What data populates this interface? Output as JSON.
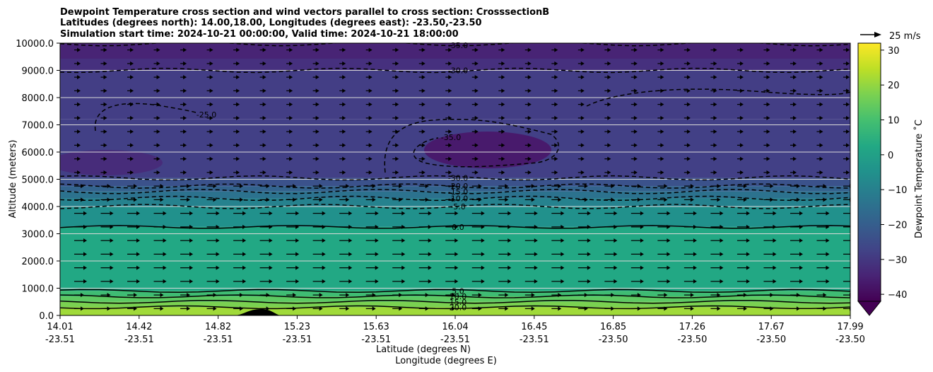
{
  "chart_data": {
    "type": "contourf",
    "title": [
      "Dewpoint Temperature cross section and wind vectors parallel to cross section: CrosssectionB",
      "Latitudes (degrees north): 14.00,18.00, Longitudes (degrees east): -23.50,-23.50",
      "Simulation start time: 2024-10-21 00:00:00, Valid time: 2024-10-21 18:00:00"
    ],
    "xlabel_lat": "Latitude (degrees N)",
    "xlabel_lon": "Longitude (degrees E)",
    "ylabel": "Altitude (meters)",
    "ylim": [
      0,
      10000
    ],
    "y_ticks": [
      "0.0",
      "1000.0",
      "2000.0",
      "3000.0",
      "4000.0",
      "5000.0",
      "6000.0",
      "7000.0",
      "8000.0",
      "9000.0",
      "10000.0"
    ],
    "y_tick_values": [
      0,
      1000,
      2000,
      3000,
      4000,
      5000,
      6000,
      7000,
      8000,
      9000,
      10000
    ],
    "x_ticks_lat": [
      "14.01",
      "14.42",
      "14.82",
      "15.23",
      "15.63",
      "16.04",
      "16.45",
      "16.85",
      "17.26",
      "17.67",
      "17.99"
    ],
    "x_ticks_lon": [
      "-23.51",
      "-23.51",
      "-23.51",
      "-23.51",
      "-23.51",
      "-23.51",
      "-23.51",
      "-23.50",
      "-23.50",
      "-23.50",
      "-23.50"
    ],
    "colorbar": {
      "label": "Dewpoint Temperature ˚C",
      "ticks": [
        "30",
        "20",
        "10",
        "0",
        "−10",
        "−20",
        "−30",
        "−40"
      ],
      "tick_values": [
        30,
        20,
        10,
        0,
        -10,
        -20,
        -30,
        -40
      ],
      "range": [
        -42,
        32
      ],
      "colormap": "viridis",
      "extend": "min"
    },
    "quiver_key": {
      "label": "25 m/s"
    },
    "grid": "horizontal",
    "contours": [
      {
        "level": -35,
        "label": "-35.0",
        "style": "dashed",
        "approx_altitude": 9980
      },
      {
        "level": -30,
        "label": "-30.0",
        "style": "dashed",
        "approx_altitude": 9000
      },
      {
        "level": -25,
        "label": "-25.0",
        "style": "dashed",
        "approx_altitude": 7200
      },
      {
        "level": -35,
        "label": "-35.0",
        "style": "dashed",
        "approx_altitude": 6100
      },
      {
        "level": -30,
        "label": "-30.0",
        "style": "dashed",
        "approx_altitude": 5050
      },
      {
        "level": -20,
        "label": "-20.0",
        "style": "dashed",
        "approx_altitude": 4750
      },
      {
        "level": -15,
        "label": "-15.0",
        "style": "dashed",
        "approx_altitude": 4550
      },
      {
        "level": -10,
        "label": "-10.0",
        "style": "dashed",
        "approx_altitude": 4300
      },
      {
        "level": -5,
        "label": "-5.0",
        "style": "dashed",
        "approx_altitude": 4000
      },
      {
        "level": 0,
        "label": "0.0",
        "style": "solid",
        "approx_altitude": 3250
      },
      {
        "level": 5,
        "label": "5.0",
        "style": "solid",
        "approx_altitude": 900
      },
      {
        "level": 10,
        "label": "10.0",
        "style": "solid",
        "approx_altitude": 700
      },
      {
        "level": 15,
        "label": "15.0",
        "style": "solid",
        "approx_altitude": 500
      },
      {
        "level": 20,
        "label": "20.0",
        "style": "solid",
        "approx_altitude": 300
      }
    ]
  }
}
